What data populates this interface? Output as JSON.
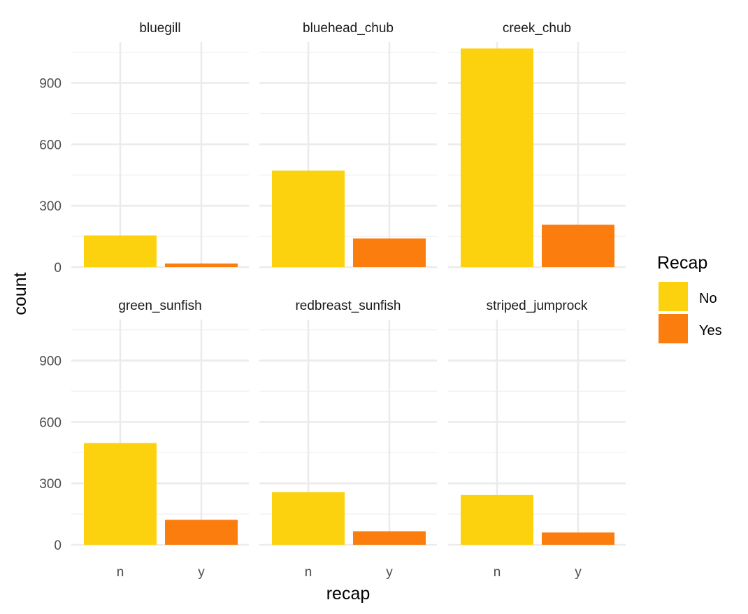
{
  "chart_data": {
    "type": "bar",
    "facet_type": "faceted bar",
    "xlabel": "recap",
    "ylabel": "count",
    "categories": [
      "n",
      "y"
    ],
    "ylim": [
      0,
      1100
    ],
    "yticks": [
      0,
      300,
      600,
      900
    ],
    "grid": true,
    "legend": {
      "title": "Recap",
      "position": "right",
      "entries": [
        {
          "label": "No",
          "color": "#FCD20E"
        },
        {
          "label": "Yes",
          "color": "#FB7D0E"
        }
      ]
    },
    "colors": {
      "n": "#FCD20E",
      "y": "#FB7D0E"
    },
    "facets": [
      {
        "title": "bluegill",
        "values": [
          155,
          18
        ]
      },
      {
        "title": "bluehead_chub",
        "values": [
          472,
          140
        ]
      },
      {
        "title": "creek_chub",
        "values": [
          1068,
          207
        ]
      },
      {
        "title": "green_sunfish",
        "values": [
          497,
          122
        ]
      },
      {
        "title": "redbreast_sunfish",
        "values": [
          257,
          66
        ]
      },
      {
        "title": "striped_jumprock",
        "values": [
          243,
          60
        ]
      }
    ]
  }
}
